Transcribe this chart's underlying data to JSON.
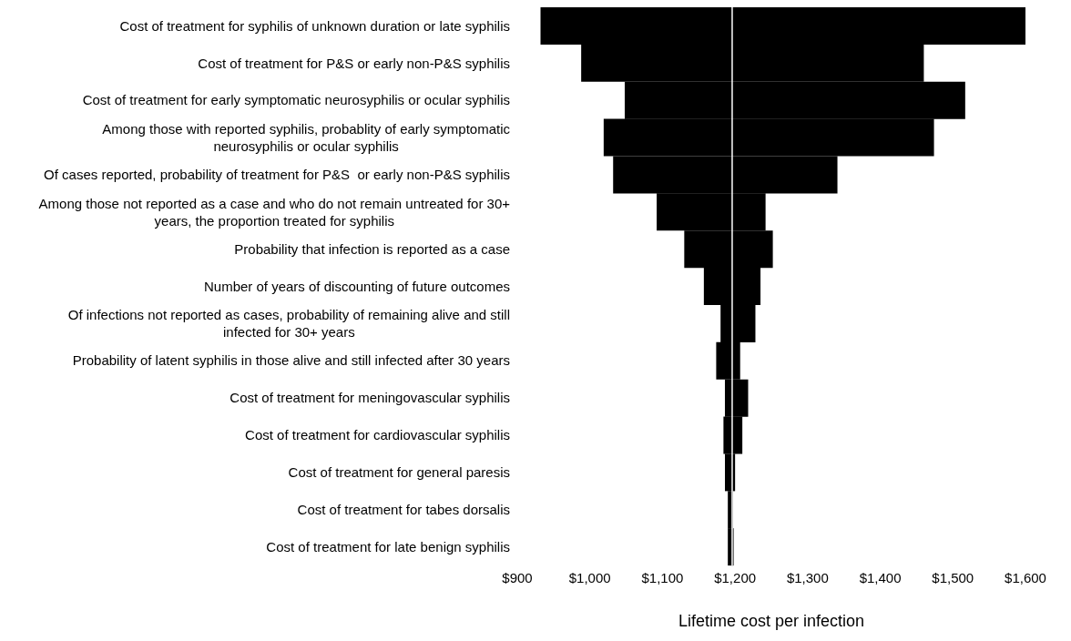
{
  "chart_data": {
    "type": "bar",
    "orientation": "horizontal",
    "xlabel": "Lifetime cost per infection",
    "categories": [
      "Cost of treatment for syphilis of unknown duration or late syphilis",
      "Cost of treatment for P&S or early non-P&S syphilis",
      "Cost of treatment for early symptomatic neurosyphilis or ocular syphilis",
      "Among those with reported syphilis, probablity of early symptomatic neurosyphilis or ocular syphilis",
      "Of cases reported, probability of treatment for P&S  or early non-P&S syphilis",
      "Among those not reported as a case and who do not remain untreated for 30+ years, the proportion treated for syphilis",
      "Probability that infection is reported as a case",
      "Number of years of discounting of future outcomes",
      "Of infections not reported as cases, probability of remaining alive and still infected for 30+ years",
      "Probability of latent syphilis in those alive and still infected after 30 years",
      "Cost of treatment for meningovascular syphilis",
      "Cost of treatment for cardiovascular syphilis",
      "Cost of treatment for general paresis",
      "Cost of treatment for tabes dorsalis",
      "Cost of treatment for late benign syphilis"
    ],
    "base": [
      932,
      988,
      1048,
      1019,
      1032,
      1092,
      1130,
      1157,
      1180,
      1174,
      1186,
      1184,
      1186,
      1190,
      1190
    ],
    "values": [
      668,
      472,
      469,
      455,
      309,
      150,
      122,
      78,
      48,
      33,
      32,
      26,
      14,
      7,
      8
    ],
    "color": "#000000",
    "xlim": [
      900,
      1600
    ],
    "xticks": [
      {
        "value": 900,
        "label": "$900"
      },
      {
        "value": 1000,
        "label": "$1,000"
      },
      {
        "value": 1100,
        "label": "$1,100"
      },
      {
        "value": 1200,
        "label": "$1,200"
      },
      {
        "value": 1300,
        "label": "$1,300"
      },
      {
        "value": 1400,
        "label": "$1,400"
      },
      {
        "value": 1500,
        "label": "$1,500"
      },
      {
        "value": 1600,
        "label": "$1,600"
      }
    ],
    "ref_lines": [
      {
        "axis": "x",
        "value": 1196,
        "color": "#ffffff"
      }
    ],
    "grid": false,
    "legend": false
  }
}
